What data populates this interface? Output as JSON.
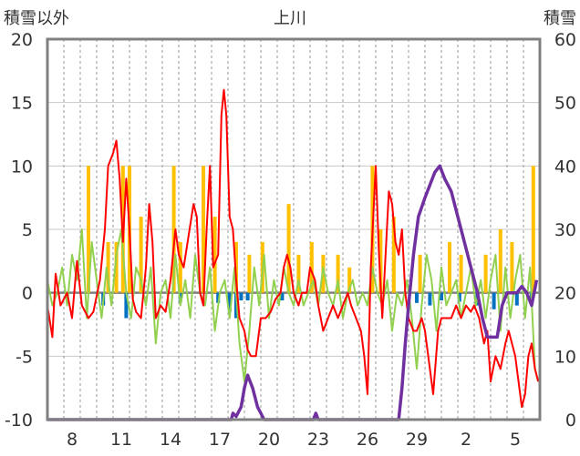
{
  "chart_data": {
    "type": "line",
    "title": "上川",
    "ylabel_left": "積雪以外",
    "ylabel_right": "積雪",
    "ylim_left": [
      -10,
      20
    ],
    "ylim_right": [
      0,
      60
    ],
    "yticks_left": [
      20,
      15,
      10,
      5,
      0,
      -5,
      -10
    ],
    "yticks_right": [
      60,
      50,
      40,
      30,
      20,
      10,
      0
    ],
    "x_range": [
      0,
      30
    ],
    "x_ticks": [
      {
        "x": 1.5,
        "label": "8"
      },
      {
        "x": 4.5,
        "label": "11"
      },
      {
        "x": 7.5,
        "label": "14"
      },
      {
        "x": 10.5,
        "label": "17"
      },
      {
        "x": 13.5,
        "label": "20"
      },
      {
        "x": 16.5,
        "label": "23"
      },
      {
        "x": 19.5,
        "label": "26"
      },
      {
        "x": 22.5,
        "label": "29"
      },
      {
        "x": 25.5,
        "label": "2"
      },
      {
        "x": 28.5,
        "label": "5"
      }
    ],
    "grid": {
      "vertical_dashed": true,
      "horizontal": true
    },
    "colors": {
      "temperature": "#ff0000",
      "secondary": "#92d050",
      "snow_depth": "#7030a0",
      "precip_bar": "#ffc000",
      "neg_bar": "#0070c0",
      "frame": "#808080",
      "grid": "#c8c8c8"
    },
    "series": [
      {
        "axis": "left",
        "color_key": "temperature",
        "points": [
          [
            0,
            -1
          ],
          [
            0.3,
            -3.5
          ],
          [
            0.5,
            1.5
          ],
          [
            0.8,
            -1
          ],
          [
            1.2,
            0
          ],
          [
            1.5,
            -2
          ],
          [
            1.8,
            2.5
          ],
          [
            2.1,
            -1
          ],
          [
            2.5,
            -2
          ],
          [
            2.8,
            -1.5
          ],
          [
            3.2,
            1
          ],
          [
            3.5,
            5
          ],
          [
            3.7,
            10
          ],
          [
            4.0,
            11
          ],
          [
            4.2,
            12
          ],
          [
            4.4,
            9
          ],
          [
            4.6,
            4
          ],
          [
            4.8,
            9
          ],
          [
            5.0,
            5
          ],
          [
            5.2,
            -0.5
          ],
          [
            5.4,
            -1.5
          ],
          [
            5.7,
            -2
          ],
          [
            6.0,
            2
          ],
          [
            6.2,
            7
          ],
          [
            6.4,
            4
          ],
          [
            6.6,
            -2
          ],
          [
            6.9,
            -1
          ],
          [
            7.2,
            -1.5
          ],
          [
            7.5,
            1
          ],
          [
            7.8,
            5
          ],
          [
            8.0,
            3
          ],
          [
            8.3,
            2
          ],
          [
            8.6,
            4.5
          ],
          [
            8.9,
            7
          ],
          [
            9.1,
            6
          ],
          [
            9.3,
            0
          ],
          [
            9.5,
            -1
          ],
          [
            9.7,
            5
          ],
          [
            9.9,
            10
          ],
          [
            10.1,
            2
          ],
          [
            10.4,
            3
          ],
          [
            10.6,
            14
          ],
          [
            10.75,
            16
          ],
          [
            10.9,
            14
          ],
          [
            11.1,
            6
          ],
          [
            11.3,
            5
          ],
          [
            11.5,
            1
          ],
          [
            11.7,
            -2
          ],
          [
            12.0,
            -3
          ],
          [
            12.2,
            -4.5
          ],
          [
            12.4,
            -5
          ],
          [
            12.7,
            -5
          ],
          [
            13.0,
            -2
          ],
          [
            13.3,
            -2
          ],
          [
            13.6,
            -1.5
          ],
          [
            13.9,
            -0.5
          ],
          [
            14.2,
            0
          ],
          [
            14.4,
            2
          ],
          [
            14.6,
            3
          ],
          [
            14.8,
            2
          ],
          [
            15.0,
            0
          ],
          [
            15.3,
            -1
          ],
          [
            15.5,
            0
          ],
          [
            15.8,
            0
          ],
          [
            16.0,
            2
          ],
          [
            16.3,
            1
          ],
          [
            16.5,
            -1
          ],
          [
            16.8,
            -3
          ],
          [
            17.1,
            -2
          ],
          [
            17.4,
            -1
          ],
          [
            17.7,
            -2
          ],
          [
            18.0,
            -1
          ],
          [
            18.3,
            0
          ],
          [
            18.5,
            -1
          ],
          [
            18.8,
            -2
          ],
          [
            19.1,
            -3
          ],
          [
            19.3,
            -5
          ],
          [
            19.5,
            -8
          ],
          [
            19.7,
            2
          ],
          [
            20.0,
            10
          ],
          [
            20.2,
            3
          ],
          [
            20.4,
            -2
          ],
          [
            20.6,
            3
          ],
          [
            20.8,
            8
          ],
          [
            21.0,
            7
          ],
          [
            21.2,
            4
          ],
          [
            21.4,
            3
          ],
          [
            21.6,
            5
          ],
          [
            21.8,
            0
          ],
          [
            22.0,
            -2
          ],
          [
            22.3,
            -3
          ],
          [
            22.5,
            -3
          ],
          [
            22.8,
            -2
          ],
          [
            23.0,
            -3
          ],
          [
            23.3,
            -6
          ],
          [
            23.5,
            -8
          ],
          [
            23.8,
            -3
          ],
          [
            24.0,
            -2
          ],
          [
            24.3,
            -2
          ],
          [
            24.6,
            -2
          ],
          [
            24.9,
            -1
          ],
          [
            25.2,
            -2
          ],
          [
            25.5,
            -1
          ],
          [
            25.8,
            -1.5
          ],
          [
            26.0,
            -1
          ],
          [
            26.3,
            -2
          ],
          [
            26.6,
            -4
          ],
          [
            26.8,
            -3
          ],
          [
            27.0,
            -7
          ],
          [
            27.3,
            -5
          ],
          [
            27.6,
            -6
          ],
          [
            27.9,
            -4
          ],
          [
            28.1,
            -3
          ],
          [
            28.3,
            -4
          ],
          [
            28.5,
            -5
          ],
          [
            28.7,
            -7
          ],
          [
            28.9,
            -9
          ],
          [
            29.1,
            -8
          ],
          [
            29.3,
            -5
          ],
          [
            29.5,
            -4
          ],
          [
            29.7,
            -6
          ],
          [
            29.9,
            -7
          ]
        ]
      },
      {
        "axis": "left",
        "color_key": "secondary",
        "points": [
          [
            0,
            1
          ],
          [
            0.3,
            -1
          ],
          [
            0.6,
            0
          ],
          [
            0.9,
            2
          ],
          [
            1.2,
            -1
          ],
          [
            1.5,
            3
          ],
          [
            1.8,
            1
          ],
          [
            2.1,
            5
          ],
          [
            2.4,
            -2
          ],
          [
            2.7,
            4
          ],
          [
            3.0,
            1
          ],
          [
            3.3,
            -2
          ],
          [
            3.6,
            2
          ],
          [
            3.9,
            -1
          ],
          [
            4.2,
            3
          ],
          [
            4.5,
            5
          ],
          [
            4.8,
            0
          ],
          [
            5.1,
            -2
          ],
          [
            5.4,
            2
          ],
          [
            5.7,
            1
          ],
          [
            6.0,
            -1
          ],
          [
            6.3,
            2
          ],
          [
            6.6,
            -4
          ],
          [
            6.9,
            0
          ],
          [
            7.2,
            1
          ],
          [
            7.5,
            -2
          ],
          [
            7.8,
            3
          ],
          [
            8.1,
            -1
          ],
          [
            8.4,
            1
          ],
          [
            8.7,
            -2
          ],
          [
            9.0,
            3
          ],
          [
            9.3,
            0
          ],
          [
            9.6,
            -1
          ],
          [
            9.9,
            2
          ],
          [
            10.2,
            -3
          ],
          [
            10.5,
            0
          ],
          [
            10.8,
            1
          ],
          [
            11.1,
            -2
          ],
          [
            11.4,
            2
          ],
          [
            11.7,
            -4
          ],
          [
            12.0,
            -7
          ],
          [
            12.3,
            -3
          ],
          [
            12.6,
            2
          ],
          [
            12.9,
            -1
          ],
          [
            13.2,
            3
          ],
          [
            13.5,
            -2
          ],
          [
            13.8,
            1
          ],
          [
            14.1,
            -1
          ],
          [
            14.4,
            2
          ],
          [
            14.7,
            0
          ],
          [
            15.0,
            -1
          ],
          [
            15.3,
            1
          ],
          [
            15.6,
            -1
          ],
          [
            15.9,
            0
          ],
          [
            16.2,
            1
          ],
          [
            16.5,
            -1
          ],
          [
            16.8,
            2
          ],
          [
            17.1,
            0
          ],
          [
            17.4,
            -1
          ],
          [
            17.7,
            1
          ],
          [
            18.0,
            -2
          ],
          [
            18.3,
            0
          ],
          [
            18.6,
            1
          ],
          [
            18.9,
            -1
          ],
          [
            19.2,
            0
          ],
          [
            19.5,
            -1
          ],
          [
            19.8,
            2
          ],
          [
            20.1,
            0
          ],
          [
            20.4,
            -1
          ],
          [
            20.7,
            1
          ],
          [
            21.0,
            -3
          ],
          [
            21.3,
            0
          ],
          [
            21.6,
            -1
          ],
          [
            21.9,
            1
          ],
          [
            22.2,
            -2
          ],
          [
            22.5,
            -6
          ],
          [
            22.8,
            -1
          ],
          [
            23.1,
            3
          ],
          [
            23.4,
            1
          ],
          [
            23.7,
            -3
          ],
          [
            24.0,
            2
          ],
          [
            24.3,
            -1
          ],
          [
            24.6,
            0
          ],
          [
            24.9,
            1
          ],
          [
            25.2,
            -2
          ],
          [
            25.5,
            0
          ],
          [
            25.8,
            2
          ],
          [
            26.1,
            -1
          ],
          [
            26.4,
            1
          ],
          [
            26.7,
            -2
          ],
          [
            27.0,
            1
          ],
          [
            27.3,
            3
          ],
          [
            27.6,
            -3
          ],
          [
            27.9,
            2
          ],
          [
            28.2,
            -2
          ],
          [
            28.5,
            1
          ],
          [
            28.8,
            3
          ],
          [
            29.1,
            -2
          ],
          [
            29.4,
            2
          ],
          [
            29.7,
            -6
          ],
          [
            29.9,
            -7
          ]
        ]
      },
      {
        "axis": "right",
        "color_key": "snow_depth",
        "points": [
          [
            0,
            0
          ],
          [
            9,
            0
          ],
          [
            11.2,
            0
          ],
          [
            11.3,
            1
          ],
          [
            11.5,
            0.5
          ],
          [
            11.8,
            2
          ],
          [
            12.0,
            5
          ],
          [
            12.2,
            7
          ],
          [
            12.5,
            5
          ],
          [
            12.8,
            2
          ],
          [
            13.0,
            1
          ],
          [
            13.2,
            0
          ],
          [
            16.2,
            0
          ],
          [
            16.35,
            1
          ],
          [
            16.5,
            0
          ],
          [
            21.4,
            0
          ],
          [
            21.6,
            5
          ],
          [
            21.8,
            12
          ],
          [
            22.0,
            18
          ],
          [
            22.3,
            26
          ],
          [
            22.6,
            32
          ],
          [
            23.0,
            35
          ],
          [
            23.3,
            37
          ],
          [
            23.6,
            39
          ],
          [
            23.9,
            40
          ],
          [
            24.2,
            38
          ],
          [
            24.6,
            36
          ],
          [
            25.0,
            32
          ],
          [
            25.4,
            28
          ],
          [
            25.8,
            24
          ],
          [
            26.2,
            20
          ],
          [
            26.5,
            16
          ],
          [
            26.8,
            13
          ],
          [
            27.1,
            13
          ],
          [
            27.4,
            13
          ],
          [
            27.7,
            18
          ],
          [
            28.0,
            20
          ],
          [
            28.3,
            20
          ],
          [
            28.6,
            20
          ],
          [
            28.9,
            21
          ],
          [
            29.2,
            20
          ],
          [
            29.5,
            18
          ],
          [
            29.8,
            22
          ]
        ]
      }
    ],
    "bars_positive": [
      [
        2.5,
        10
      ],
      [
        3.7,
        4
      ],
      [
        4.2,
        4
      ],
      [
        4.6,
        10
      ],
      [
        5.0,
        10
      ],
      [
        5.7,
        6
      ],
      [
        7.7,
        10
      ],
      [
        8.1,
        4
      ],
      [
        9.5,
        10
      ],
      [
        10.2,
        6
      ],
      [
        11.5,
        4
      ],
      [
        12.3,
        3
      ],
      [
        13.1,
        4
      ],
      [
        14.7,
        7
      ],
      [
        15.3,
        3
      ],
      [
        16.1,
        4
      ],
      [
        16.8,
        3
      ],
      [
        17.7,
        3
      ],
      [
        18.4,
        2
      ],
      [
        19.8,
        10
      ],
      [
        20.3,
        5
      ],
      [
        21.1,
        6
      ],
      [
        22.7,
        3
      ],
      [
        24.5,
        4
      ],
      [
        25.2,
        3
      ],
      [
        26.7,
        3
      ],
      [
        27.6,
        5
      ],
      [
        28.3,
        4
      ],
      [
        29.6,
        10
      ]
    ],
    "bars_negative": [
      [
        3.4,
        -1
      ],
      [
        4.8,
        -2
      ],
      [
        8.1,
        -0.7
      ],
      [
        10.4,
        -0.8
      ],
      [
        11.1,
        -1.5
      ],
      [
        11.5,
        -2
      ],
      [
        11.8,
        -0.6
      ],
      [
        12.2,
        -0.6
      ],
      [
        14.3,
        -0.6
      ],
      [
        22.5,
        -0.8
      ],
      [
        23.3,
        -1
      ],
      [
        24.0,
        -0.6
      ],
      [
        25.1,
        -0.7
      ],
      [
        26.2,
        -1
      ],
      [
        27.2,
        -1.3
      ],
      [
        28.6,
        -1
      ],
      [
        29.5,
        -0.8
      ]
    ]
  }
}
